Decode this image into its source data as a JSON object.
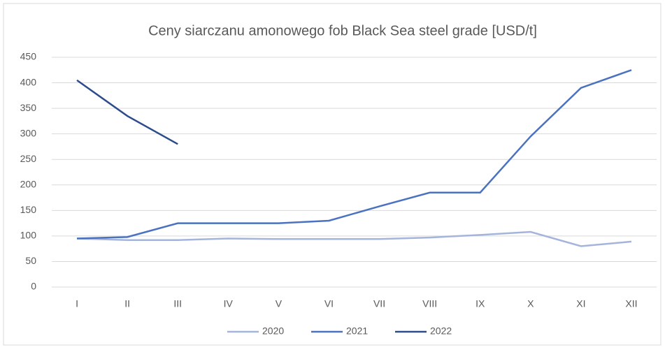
{
  "chart_data": {
    "type": "line",
    "title": "Ceny siarczanu amonowego fob Black Sea steel grade [USD/t]",
    "categories": [
      "I",
      "II",
      "III",
      "IV",
      "V",
      "VI",
      "VII",
      "VIII",
      "IX",
      "X",
      "XI",
      "XII"
    ],
    "series": [
      {
        "name": "2020",
        "color": "#a5b4dc",
        "values": [
          95,
          92,
          92,
          95,
          94,
          94,
          94,
          97,
          102,
          108,
          80,
          89
        ]
      },
      {
        "name": "2021",
        "color": "#4a72c0",
        "values": [
          95,
          98,
          125,
          125,
          125,
          130,
          158,
          185,
          185,
          295,
          390,
          425
        ]
      },
      {
        "name": "2022",
        "color": "#2c4c8c",
        "values": [
          405,
          335,
          280,
          null,
          null,
          null,
          null,
          null,
          null,
          null,
          null,
          null
        ]
      }
    ],
    "ylim": [
      0,
      450
    ],
    "yticks": [
      0,
      50,
      100,
      150,
      200,
      250,
      300,
      350,
      400,
      450
    ],
    "grid": true,
    "legend": "bottom"
  }
}
